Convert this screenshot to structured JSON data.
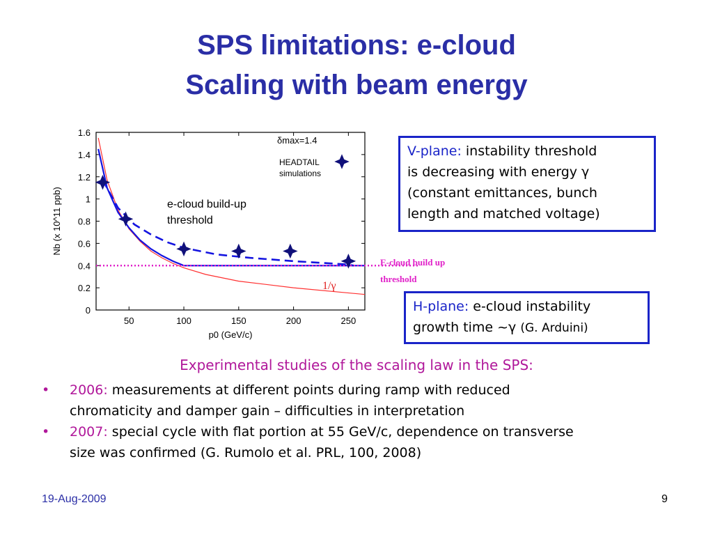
{
  "slide": {
    "title_line1": "SPS limitations: e-cloud",
    "title_line2": "Scaling with beam energy",
    "date": "19-Aug-2009",
    "page_number": "9"
  },
  "vplane_box": {
    "label": "V-plane:",
    "line1": " instability threshold",
    "line2": "is decreasing with energy γ",
    "line3": "(constant emittances, bunch",
    "line4": "length and matched voltage)"
  },
  "hplane_box": {
    "label": "H-plane:",
    "line1": " e-cloud instability",
    "line2": "growth time ~γ ",
    "ref": "(G. Arduini)"
  },
  "experimental": {
    "heading": "Experimental studies of the scaling law in the SPS:",
    "items": [
      {
        "year": "2006:",
        "line1": " measurements at different points during ramp with reduced",
        "line2": "chromaticity and damper gain – difficulties in interpretation"
      },
      {
        "year": "2007:",
        "line1": " special cycle with flat portion at 55 GeV/c, dependence on transverse",
        "line2": "size was confirmed   (G. Rumolo et al. PRL, 100, 2008)"
      }
    ]
  },
  "colors": {
    "title": "#2a2ea6",
    "accent": "#1a24c8",
    "magenta": "#b0179a",
    "threshold_line": "#e020c8",
    "red_curve": "#ff3030"
  },
  "chart_data": {
    "type": "scatter",
    "xlabel": "p0 (GeV/c)",
    "ylabel": "Nb (x 10^11 ppb)",
    "xlim": [
      20,
      265
    ],
    "ylim": [
      0,
      1.6
    ],
    "xticks": [
      "50",
      "100",
      "150",
      "200",
      "250"
    ],
    "yticks": [
      "0",
      "0.2",
      "0.4",
      "0.6",
      "0.8",
      "1",
      "1.2",
      "1.4",
      "1.6"
    ],
    "grid": false,
    "annotations": {
      "delta_max": "δmax=1.4",
      "headtail": "HEADTAIL",
      "simulations": "simulations",
      "ecloud_label_1": "e-cloud build-up",
      "ecloud_label_2": "threshold",
      "ecloud_out_1": "E-cloud build up",
      "ecloud_out_2": "threshold",
      "gamma_label": "1/γ"
    },
    "series": [
      {
        "style": "markers-star",
        "x": [
          26,
          47,
          100,
          150,
          197,
          250
        ],
        "y": [
          1.15,
          0.82,
          0.55,
          0.53,
          0.53,
          0.44
        ]
      },
      {
        "style": "dashed-blue-fit",
        "x": [
          26,
          40,
          55,
          70,
          85,
          100,
          130,
          160,
          200,
          250,
          255
        ],
        "y": [
          1.17,
          0.92,
          0.77,
          0.68,
          0.61,
          0.56,
          0.5,
          0.47,
          0.44,
          0.41,
          0.4
        ]
      },
      {
        "style": "solid-blue",
        "x": [
          22,
          30,
          40,
          50,
          60,
          70,
          80,
          90,
          100,
          150,
          200,
          265
        ],
        "y": [
          1.45,
          1.1,
          0.88,
          0.74,
          0.63,
          0.55,
          0.49,
          0.44,
          0.4,
          0.4,
          0.4,
          0.4
        ]
      },
      {
        "style": "red-1-over-gamma",
        "x": [
          22,
          30,
          40,
          50,
          60,
          70,
          80,
          90,
          100,
          120,
          150,
          200,
          265
        ],
        "y": [
          1.55,
          1.17,
          0.9,
          0.73,
          0.62,
          0.53,
          0.47,
          0.42,
          0.38,
          0.32,
          0.26,
          0.2,
          0.14
        ]
      }
    ],
    "threshold_y": 0.4
  }
}
